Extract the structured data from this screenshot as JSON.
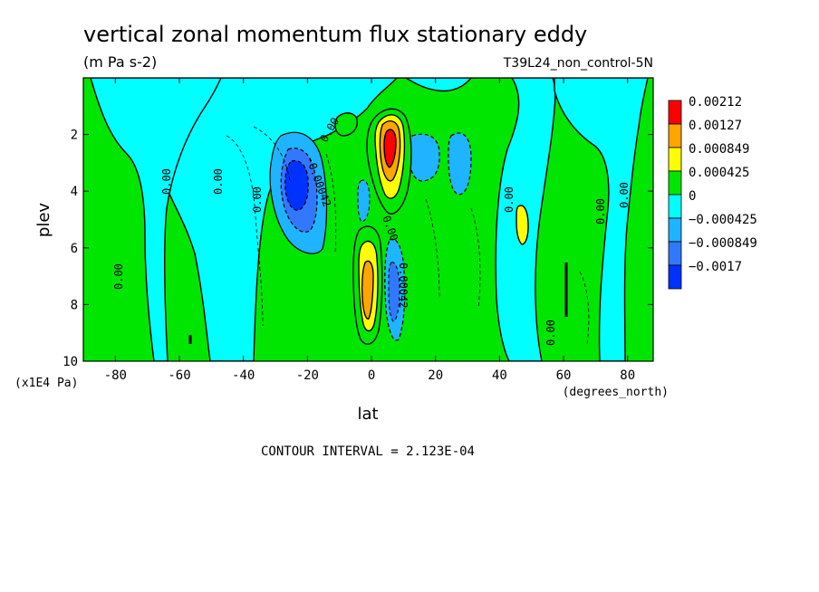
{
  "chart_data": {
    "type": "heatmap",
    "title": "vertical zonal momentum flux stationary eddy",
    "units": "(m Pa s-2)",
    "run_label": "T39L24_non_control-5N",
    "xlabel": "lat",
    "x_units": "(degrees_north)",
    "ylabel": "plev",
    "y_units": "(x1E4 Pa)",
    "x_range": [
      -90,
      88
    ],
    "y_range": [
      0,
      10
    ],
    "y_inverted": true,
    "x_ticks": [
      "-80",
      "-60",
      "-40",
      "-20",
      "0",
      "20",
      "40",
      "60",
      "80"
    ],
    "x_tick_values": [
      -80,
      -60,
      -40,
      -20,
      0,
      20,
      40,
      60,
      80
    ],
    "y_ticks": [
      "2",
      "4",
      "6",
      "8",
      "10"
    ],
    "y_tick_values": [
      2,
      4,
      6,
      8,
      10
    ],
    "contour_interval": "CONTOUR INTERVAL = 2.123E-04",
    "legend": [
      {
        "label": "0.00212",
        "color": "#ff0000"
      },
      {
        "label": "0.00127",
        "color": "#ffa500"
      },
      {
        "label": "0.000849",
        "color": "#ffff00"
      },
      {
        "label": "0.000425",
        "color": "#00e600"
      },
      {
        "label": "0",
        "color": "#00ffff"
      },
      {
        "label": "−0.000425",
        "color": "#1eb4ff"
      },
      {
        "label": "−0.000849",
        "color": "#3278ff"
      },
      {
        "label": "−0.0017",
        "color": "#0032ff"
      }
    ],
    "contour_labels": [
      "0.00",
      "-0.00042",
      "0.00042"
    ],
    "regions": [
      {
        "level": "cyan",
        "lat_min": -60,
        "lat_max": 58,
        "p_min": 0.5,
        "p_max": 9.5
      },
      {
        "level": "blue1",
        "lat_min": -32,
        "lat_max": -14,
        "p_min": 2.0,
        "p_max": 6.3
      },
      {
        "level": "blue2",
        "lat_min": -27,
        "lat_max": -19,
        "p_min": 2.8,
        "p_max": 5.5
      },
      {
        "level": "blue3",
        "lat_min": -25,
        "lat_max": -20,
        "p_min": 3.2,
        "p_max": 4.6
      },
      {
        "level": "blue1",
        "lat_min": 13,
        "lat_max": 32,
        "p_min": 1.8,
        "p_max": 4.2
      },
      {
        "level": "blue1",
        "lat_min": 5,
        "lat_max": 12,
        "p_min": 6.0,
        "p_max": 9.6
      },
      {
        "level": "green",
        "lat_min": 1,
        "lat_max": 14,
        "p_min": 0.7,
        "p_max": 4.2
      },
      {
        "level": "yellow",
        "lat_min": 4,
        "lat_max": 11,
        "p_min": 1.0,
        "p_max": 3.6
      },
      {
        "level": "orange",
        "lat_min": 5,
        "lat_max": 10,
        "p_min": 1.2,
        "p_max": 3.1
      },
      {
        "level": "red",
        "lat_min": 6,
        "lat_max": 9,
        "p_min": 1.6,
        "p_max": 2.9
      },
      {
        "level": "green",
        "lat_min": -3,
        "lat_max": 6,
        "p_min": 5.0,
        "p_max": 9.8
      },
      {
        "level": "yellow",
        "lat_min": -1,
        "lat_max": 5,
        "p_min": 5.8,
        "p_max": 9.2
      },
      {
        "level": "orange",
        "lat_min": 0,
        "lat_max": 3,
        "p_min": 6.5,
        "p_max": 8.8
      },
      {
        "level": "green",
        "lat_min": 40,
        "lat_max": 58,
        "p_min": 1.5,
        "p_max": 9.6
      },
      {
        "level": "yellow",
        "lat_min": 46,
        "lat_max": 50,
        "p_min": 4.2,
        "p_max": 5.8
      }
    ]
  }
}
